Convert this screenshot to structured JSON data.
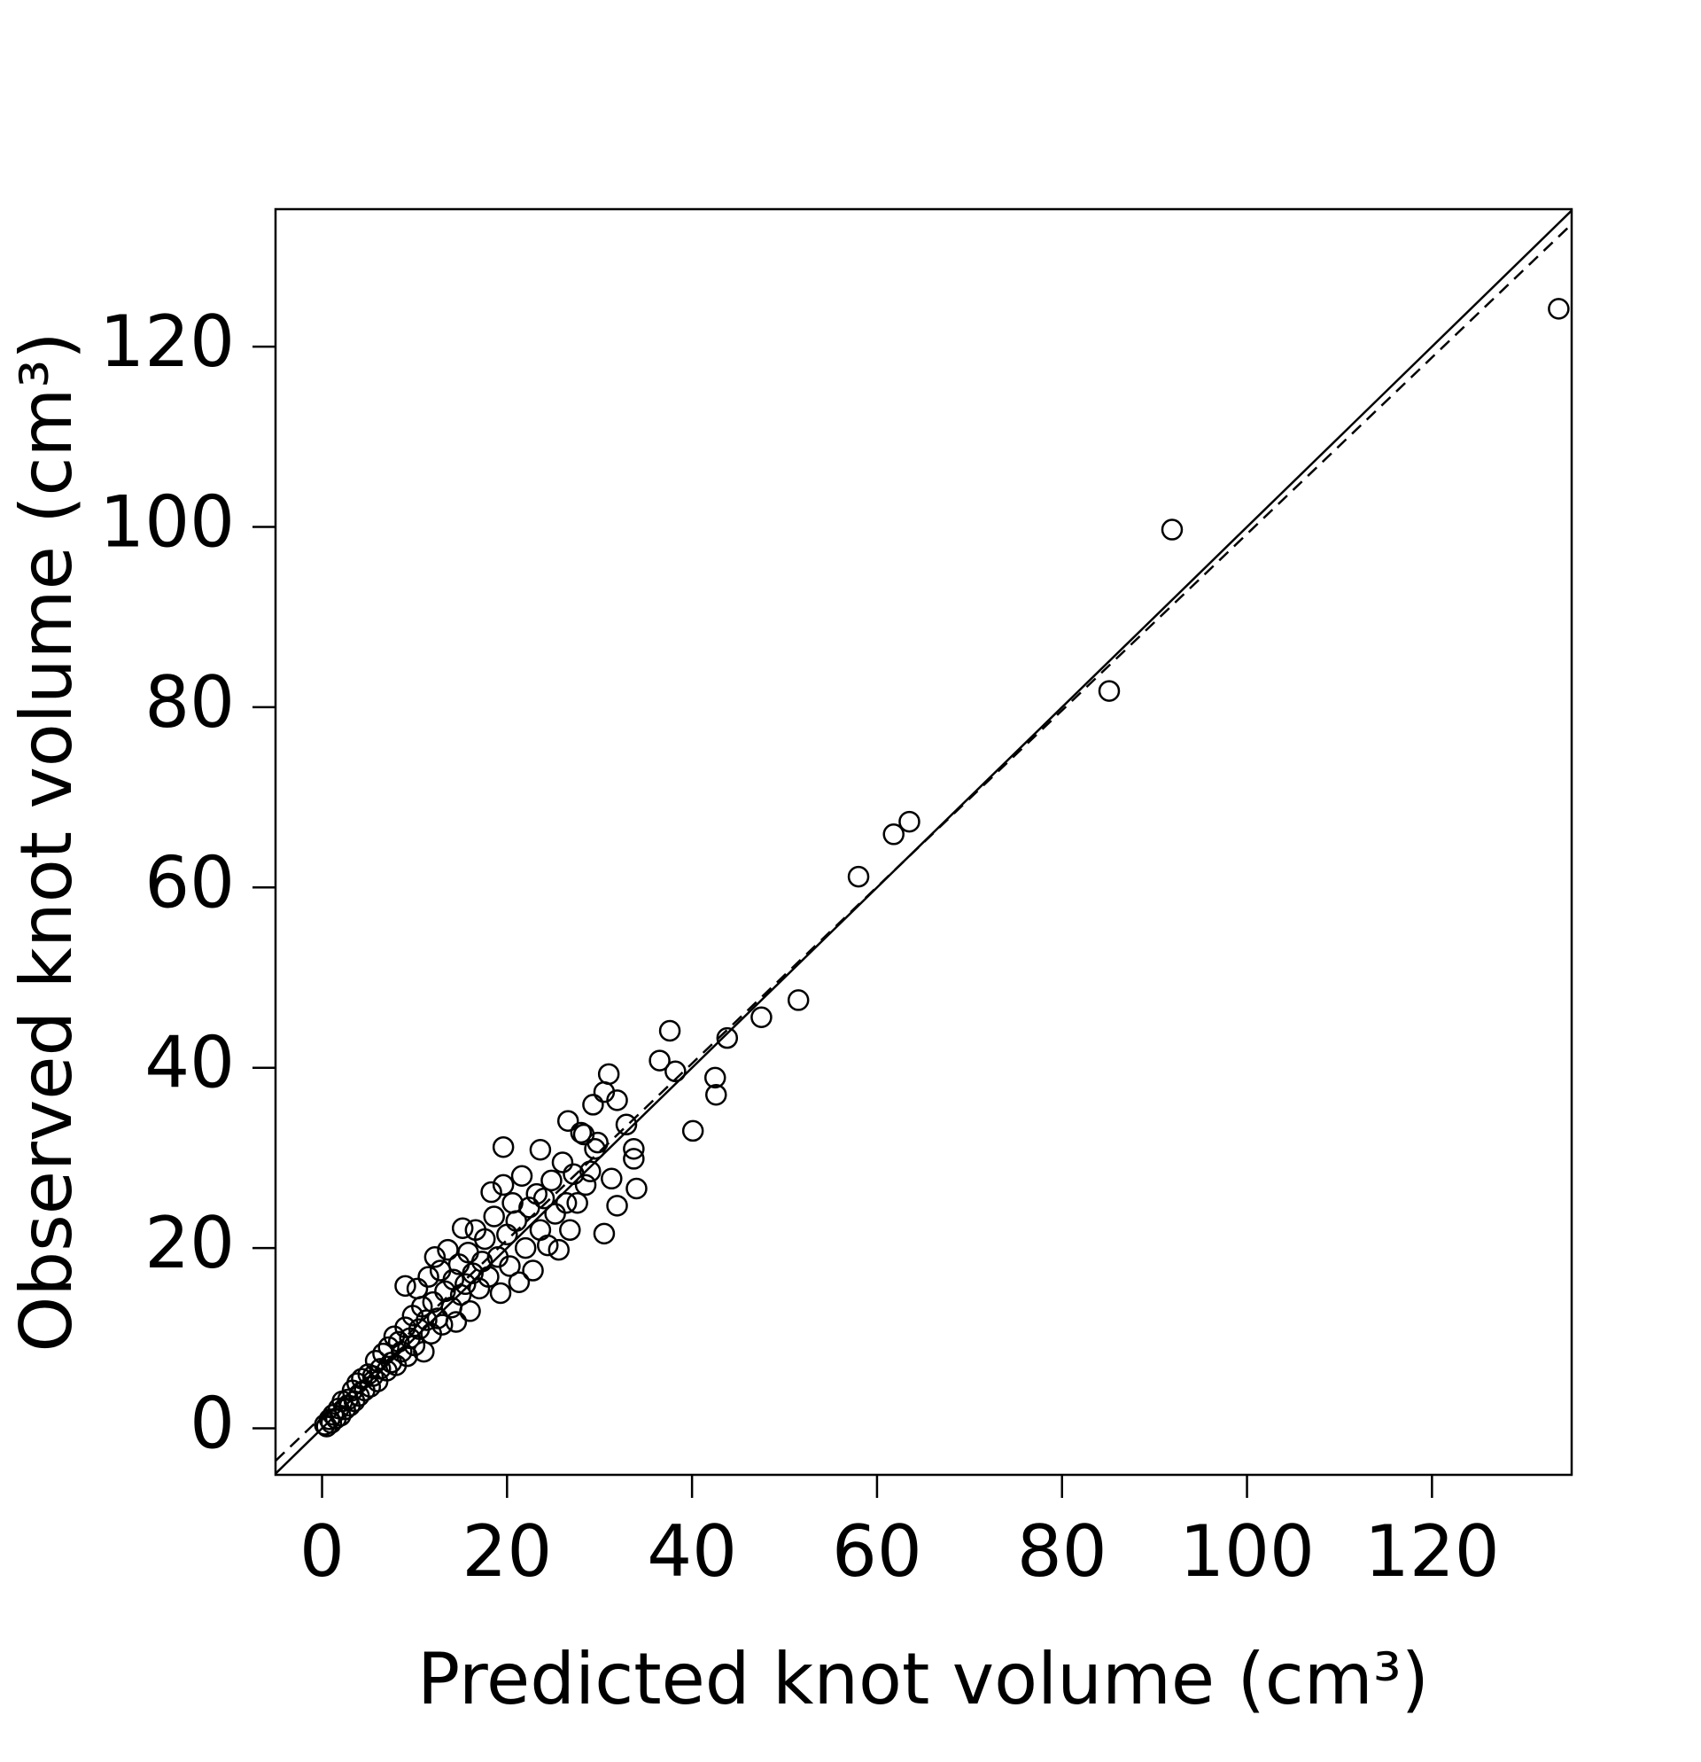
{
  "chart_data": {
    "type": "scatter",
    "xlabel": "Predicted knot volume (cm³)",
    "ylabel": "Observed knot volume (cm³)",
    "xlim": [
      -5.03,
      135.1
    ],
    "ylim": [
      -5.16,
      135.25
    ],
    "xticks": [
      0,
      20,
      40,
      60,
      80,
      100,
      120
    ],
    "yticks": [
      0,
      20,
      40,
      60,
      80,
      100,
      120
    ],
    "color": "#000000",
    "reference_lines": [
      {
        "slope": 1,
        "intercept": 0,
        "dashed": false
      },
      {
        "slope": 0.979,
        "intercept": 1.32,
        "dashed": true
      }
    ],
    "x": [
      133.7,
      91.9,
      85.1,
      63.5,
      61.8,
      58.0,
      51.5,
      47.5,
      43.8,
      37.6,
      36.5,
      38.2,
      42.5,
      42.6,
      40.1,
      31.0,
      30.5,
      31.9,
      29.3,
      26.6,
      32.9,
      33.7,
      33.7,
      34.0,
      30.5,
      31.9,
      31.3,
      19.6,
      23.6,
      28.3,
      29.8,
      0.3,
      0.5,
      0.8,
      1.0,
      1.2,
      1.5,
      1.8,
      2.0,
      2.2,
      2.5,
      2.8,
      3.0,
      3.3,
      3.5,
      3.8,
      4.0,
      4.3,
      4.6,
      5.0,
      5.2,
      5.5,
      5.8,
      6.0,
      6.3,
      6.6,
      7.0,
      7.2,
      7.5,
      7.8,
      8.0,
      8.3,
      8.6,
      9.0,
      9.2,
      9.5,
      9.0,
      9.8,
      10.0,
      10.3,
      10.5,
      10.8,
      11.0,
      11.3,
      11.5,
      11.8,
      12.0,
      12.2,
      12.5,
      12.8,
      13.0,
      13.3,
      13.6,
      14.0,
      14.2,
      14.5,
      14.8,
      15.0,
      15.2,
      15.5,
      15.8,
      16.0,
      16.3,
      16.6,
      17.0,
      17.3,
      17.6,
      18.0,
      18.3,
      18.6,
      19.0,
      19.3,
      19.6,
      20.0,
      20.3,
      20.6,
      21.0,
      21.3,
      21.6,
      22.0,
      22.4,
      22.8,
      23.2,
      23.6,
      24.0,
      24.4,
      24.8,
      25.2,
      25.6,
      26.0,
      26.4,
      26.8,
      27.2,
      27.6,
      28.0,
      28.5,
      29.0,
      29.5
    ],
    "values": [
      124.2,
      99.7,
      81.8,
      67.3,
      65.9,
      61.2,
      47.5,
      45.6,
      43.3,
      44.1,
      40.8,
      39.6,
      38.9,
      37.0,
      33.0,
      39.3,
      37.3,
      36.4,
      35.9,
      34.1,
      33.7,
      31.0,
      29.9,
      26.6,
      21.6,
      24.7,
      27.7,
      31.2,
      30.9,
      32.6,
      31.7,
      0.4,
      0.2,
      1.0,
      0.6,
      1.5,
      1.1,
      2.2,
      1.4,
      3.0,
      2.1,
      3.2,
      2.5,
      4.2,
      3.0,
      5.0,
      3.6,
      5.5,
      4.2,
      6.0,
      4.6,
      5.8,
      7.5,
      5.2,
      6.6,
      8.3,
      6.4,
      9.0,
      7.3,
      10.2,
      7.0,
      9.6,
      8.5,
      11.2,
      8.0,
      10.0,
      15.8,
      12.5,
      9.2,
      15.5,
      11.0,
      13.5,
      8.5,
      12.0,
      16.8,
      10.5,
      14.0,
      19.0,
      12.2,
      17.5,
      11.5,
      15.2,
      19.8,
      13.4,
      16.5,
      11.8,
      18.2,
      14.8,
      22.2,
      16.0,
      19.5,
      13.0,
      17.2,
      22.0,
      15.5,
      18.5,
      21.0,
      16.8,
      26.2,
      23.5,
      19.0,
      15.0,
      27.0,
      21.5,
      18.0,
      25.0,
      23.0,
      16.2,
      28.0,
      20.0,
      24.5,
      17.5,
      26.0,
      22.0,
      25.5,
      20.3,
      27.5,
      23.8,
      19.8,
      29.5,
      25.0,
      22.0,
      28.2,
      25.0,
      32.8,
      27.0,
      28.5,
      31.0
    ]
  }
}
